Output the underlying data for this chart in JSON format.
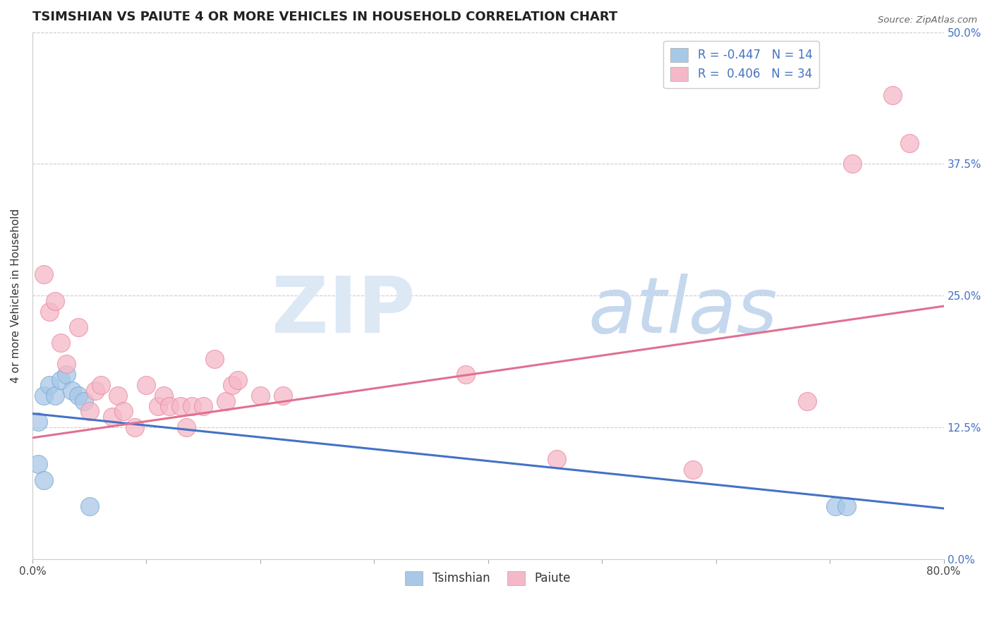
{
  "title": "TSIMSHIAN VS PAIUTE 4 OR MORE VEHICLES IN HOUSEHOLD CORRELATION CHART",
  "source": "Source: ZipAtlas.com",
  "ylabel": "4 or more Vehicles in Household",
  "xlim": [
    0.0,
    0.8
  ],
  "ylim": [
    0.0,
    0.5
  ],
  "xticks": [
    0.0,
    0.1,
    0.2,
    0.3,
    0.4,
    0.5,
    0.6,
    0.7,
    0.8
  ],
  "xticklabels": [
    "0.0%",
    "",
    "",
    "",
    "",
    "",
    "",
    "",
    "80.0%"
  ],
  "yticks_right": [
    0.0,
    0.125,
    0.25,
    0.375,
    0.5
  ],
  "yticklabels_right": [
    "0.0%",
    "12.5%",
    "25.0%",
    "37.5%",
    "50.0%"
  ],
  "tsimshian_color": "#a8c8e8",
  "paiute_color": "#f5b8c8",
  "tsimshian_edge_color": "#7aaad0",
  "paiute_edge_color": "#e888a0",
  "tsimshian_line_color": "#4472c4",
  "paiute_line_color": "#e07090",
  "legend_tsimshian_R": "-0.447",
  "legend_tsimshian_N": "14",
  "legend_paiute_R": "0.406",
  "legend_paiute_N": "34",
  "tsimshian_x": [
    0.005,
    0.01,
    0.015,
    0.02,
    0.025,
    0.03,
    0.035,
    0.04,
    0.045,
    0.05,
    0.005,
    0.01,
    0.705,
    0.715
  ],
  "tsimshian_y": [
    0.13,
    0.155,
    0.165,
    0.155,
    0.17,
    0.175,
    0.16,
    0.155,
    0.15,
    0.05,
    0.09,
    0.075,
    0.05,
    0.05
  ],
  "paiute_x": [
    0.01,
    0.015,
    0.02,
    0.025,
    0.03,
    0.04,
    0.05,
    0.055,
    0.06,
    0.07,
    0.075,
    0.08,
    0.09,
    0.1,
    0.11,
    0.115,
    0.12,
    0.13,
    0.135,
    0.14,
    0.15,
    0.16,
    0.17,
    0.175,
    0.18,
    0.2,
    0.22,
    0.38,
    0.46,
    0.58,
    0.68,
    0.72,
    0.755,
    0.77
  ],
  "paiute_y": [
    0.27,
    0.235,
    0.245,
    0.205,
    0.185,
    0.22,
    0.14,
    0.16,
    0.165,
    0.135,
    0.155,
    0.14,
    0.125,
    0.165,
    0.145,
    0.155,
    0.145,
    0.145,
    0.125,
    0.145,
    0.145,
    0.19,
    0.15,
    0.165,
    0.17,
    0.155,
    0.155,
    0.175,
    0.095,
    0.085,
    0.15,
    0.375,
    0.44,
    0.395
  ],
  "tsimshian_line_x0": 0.0,
  "tsimshian_line_y0": 0.138,
  "tsimshian_line_x1": 0.8,
  "tsimshian_line_y1": 0.048,
  "paiute_line_x0": 0.0,
  "paiute_line_y0": 0.115,
  "paiute_line_x1": 0.8,
  "paiute_line_y1": 0.24,
  "background_color": "#ffffff",
  "grid_color": "#cccccc",
  "title_fontsize": 13,
  "axis_fontsize": 11,
  "legend_fontsize": 12
}
